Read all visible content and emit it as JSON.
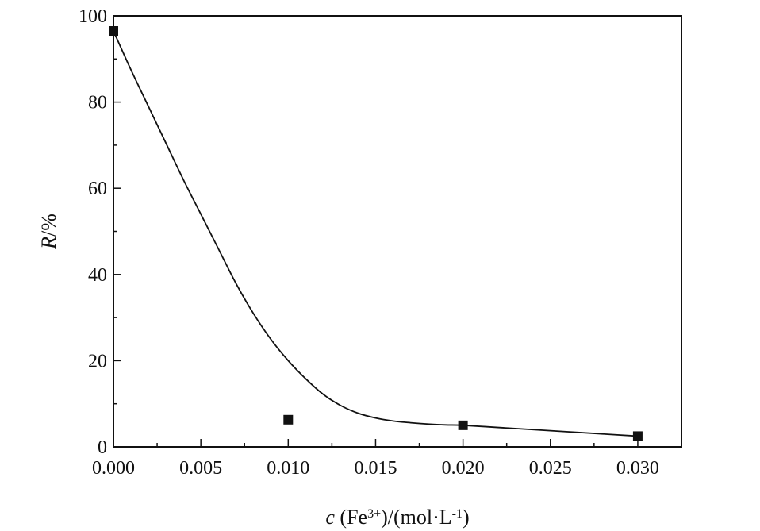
{
  "chart_data": {
    "type": "scatter",
    "title": "",
    "xlabel": {
      "italic": "c",
      "prefix": " (Fe",
      "sup1": "3+",
      "middle": ")/(mol·L",
      "sup2": "-1",
      "suffix": ")"
    },
    "ylabel": {
      "italic": "R",
      "suffix": "/%"
    },
    "xlim": [
      0.0,
      0.0325
    ],
    "ylim": [
      0,
      100
    ],
    "x_ticks": [
      {
        "value": 0.0,
        "label": "0.000"
      },
      {
        "value": 0.005,
        "label": "0.005"
      },
      {
        "value": 0.01,
        "label": "0.010"
      },
      {
        "value": 0.015,
        "label": "0.015"
      },
      {
        "value": 0.02,
        "label": "0.020"
      },
      {
        "value": 0.025,
        "label": "0.025"
      },
      {
        "value": 0.03,
        "label": "0.030"
      }
    ],
    "y_ticks": [
      {
        "value": 0,
        "label": "0"
      },
      {
        "value": 20,
        "label": "20"
      },
      {
        "value": 40,
        "label": "40"
      },
      {
        "value": 60,
        "label": "60"
      },
      {
        "value": 80,
        "label": "80"
      },
      {
        "value": 100,
        "label": "100"
      }
    ],
    "grid": false,
    "legend": "none",
    "series": [
      {
        "kind": "markers",
        "marker": "square",
        "color": "#111111",
        "x": [
          0.0,
          0.01,
          0.02,
          0.03
        ],
        "y": [
          96.5,
          6.3,
          5.0,
          2.5
        ]
      },
      {
        "kind": "fit-line",
        "color": "#111111",
        "x": [
          0.0,
          0.001,
          0.002,
          0.003,
          0.004,
          0.005,
          0.006,
          0.007,
          0.008,
          0.009,
          0.01,
          0.011,
          0.012,
          0.013,
          0.014,
          0.015,
          0.016,
          0.017,
          0.018,
          0.019,
          0.02,
          0.022,
          0.024,
          0.026,
          0.028,
          0.03
        ],
        "y": [
          96.5,
          87.5,
          79.0,
          70.5,
          62.0,
          54.0,
          46.0,
          38.0,
          31.0,
          25.0,
          20.0,
          15.8,
          12.2,
          9.6,
          7.8,
          6.7,
          6.0,
          5.6,
          5.3,
          5.1,
          5.0,
          4.5,
          4.0,
          3.5,
          3.0,
          2.5
        ]
      }
    ]
  }
}
